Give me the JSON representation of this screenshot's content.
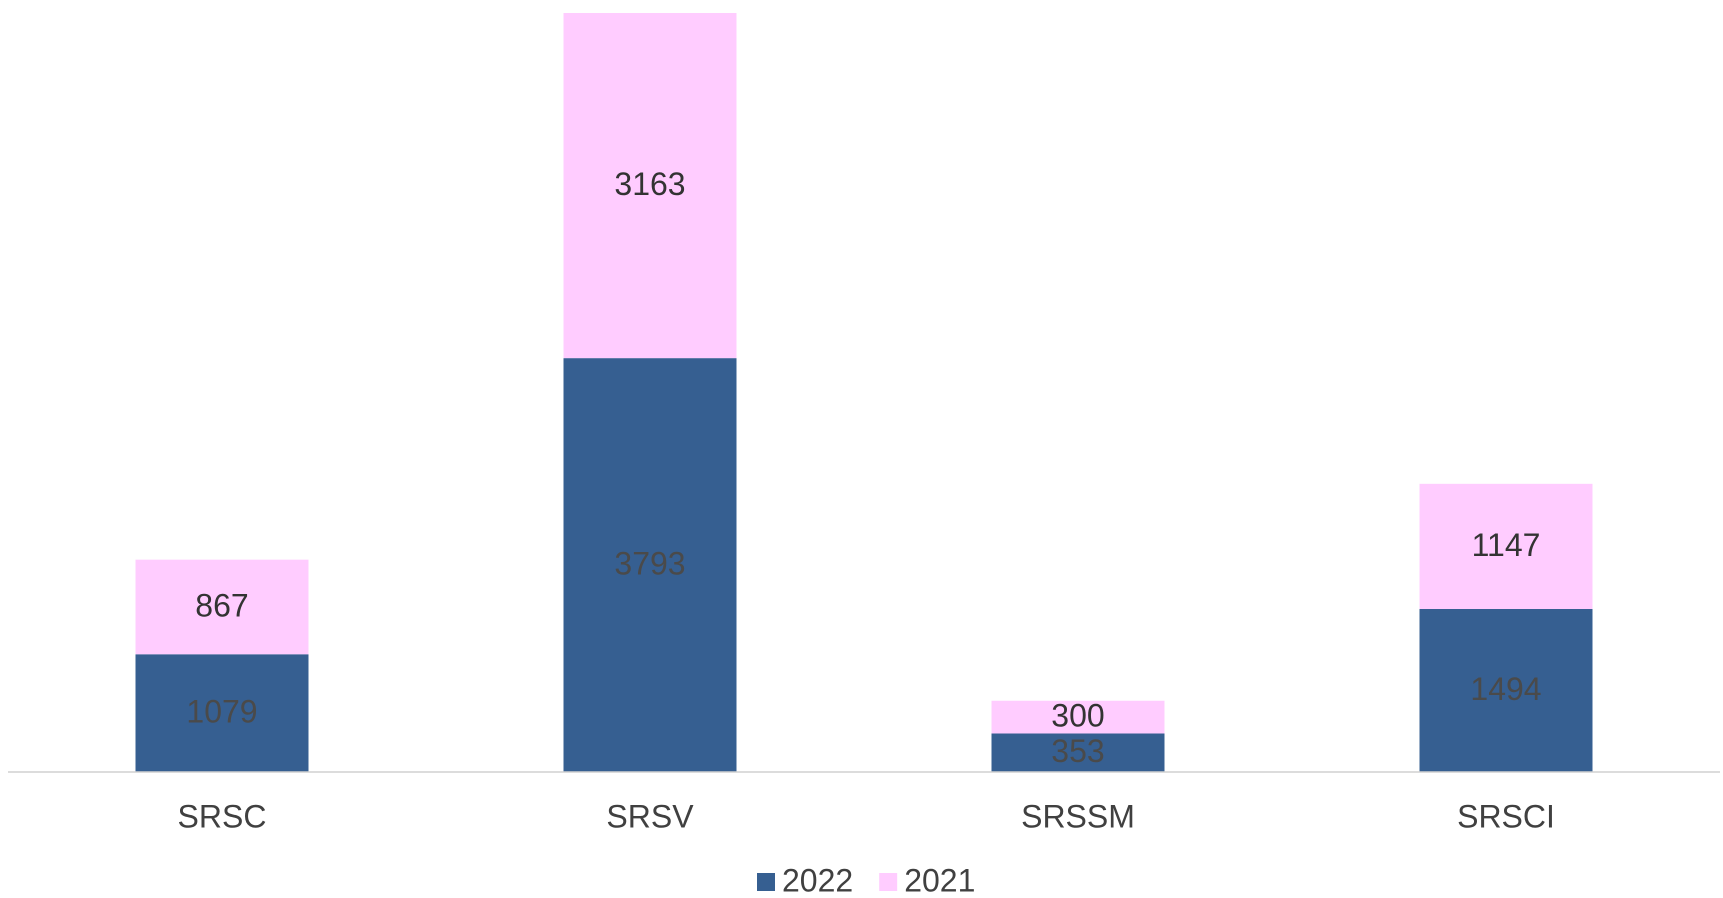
{
  "chart_data": {
    "type": "stacked_bar",
    "categories": [
      "SRSC",
      "SRSV",
      "SRSSM",
      "SRSCI"
    ],
    "series": [
      {
        "name": "2022",
        "color": "#365f91",
        "values": [
          1079,
          3793,
          353,
          1494
        ]
      },
      {
        "name": "2021",
        "color": "#ffccff",
        "values": [
          867,
          3163,
          300,
          1147
        ]
      }
    ],
    "legend": "bottom"
  }
}
